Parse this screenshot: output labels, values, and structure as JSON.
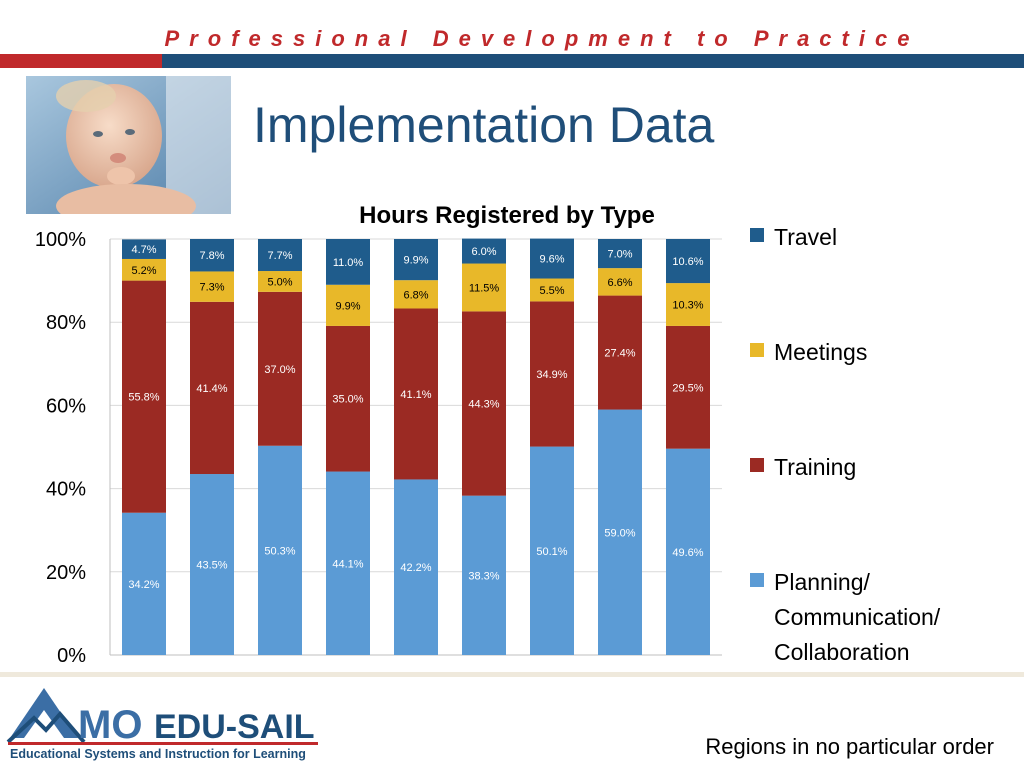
{
  "header": {
    "title": "Professional Development to Practice",
    "accent_red": "#c0292b",
    "accent_blue": "#1e4e79"
  },
  "page_title": "Implementation Data",
  "photo": {
    "icon": "baby-photo"
  },
  "chart_data": {
    "type": "bar",
    "stacked": true,
    "title": "Hours Registered by Type",
    "xlabel": "",
    "ylabel": "",
    "ylim": [
      0,
      100
    ],
    "yticks": [
      "0%",
      "20%",
      "40%",
      "60%",
      "80%",
      "100%"
    ],
    "categories": [
      "",
      "",
      "",
      "",
      "",
      "",
      "",
      "",
      ""
    ],
    "grid": true,
    "legend_position": "right",
    "series": [
      {
        "name": "Planning/ Communication/ Collaboration",
        "color": "#5b9bd5",
        "values": [
          34.2,
          43.5,
          50.3,
          44.1,
          42.2,
          38.3,
          50.1,
          59.0,
          49.6
        ],
        "labels": [
          "34.2%",
          "43.5%",
          "50.3%",
          "44.1%",
          "42.2%",
          "38.3%",
          "50.1%",
          "59.0%",
          "49.6%"
        ]
      },
      {
        "name": "Training",
        "color": "#9b2a23",
        "values": [
          55.8,
          41.4,
          37.0,
          35.0,
          41.1,
          44.3,
          34.9,
          27.4,
          29.5
        ],
        "labels": [
          "55.8%",
          "41.4%",
          "37.0%",
          "35.0%",
          "41.1%",
          "44.3%",
          "34.9%",
          "27.4%",
          "29.5%"
        ]
      },
      {
        "name": "Meetings",
        "color": "#e8b829",
        "values": [
          5.2,
          7.3,
          5.0,
          9.9,
          6.8,
          11.5,
          5.5,
          6.6,
          10.3
        ],
        "labels": [
          "5.2%",
          "7.3%",
          "5.0%",
          "9.9%",
          "6.8%",
          "11.5%",
          "5.5%",
          "6.6%",
          "10.3%"
        ]
      },
      {
        "name": "Travel",
        "color": "#1f5c8c",
        "values": [
          4.7,
          7.8,
          7.7,
          11.0,
          9.9,
          6.0,
          9.6,
          7.0,
          10.6
        ],
        "labels": [
          "4.7%",
          "7.8%",
          "7.7%",
          "11.0%",
          "9.9%",
          "6.0%",
          "9.6%",
          "7.0%",
          "10.6%"
        ]
      }
    ]
  },
  "legend": {
    "items": [
      {
        "label": "Travel",
        "color": "#1f5c8c"
      },
      {
        "label": "Meetings",
        "color": "#e8b829"
      },
      {
        "label": "Training",
        "color": "#9b2a23"
      },
      {
        "label": "Planning/ Communication/ Collaboration",
        "color": "#5b9bd5"
      }
    ]
  },
  "logo": {
    "brand": "MO",
    "name": "EDU-SAIL",
    "tagline": "Educational Systems and Instruction for Learning"
  },
  "footnote": "Regions in no particular order"
}
